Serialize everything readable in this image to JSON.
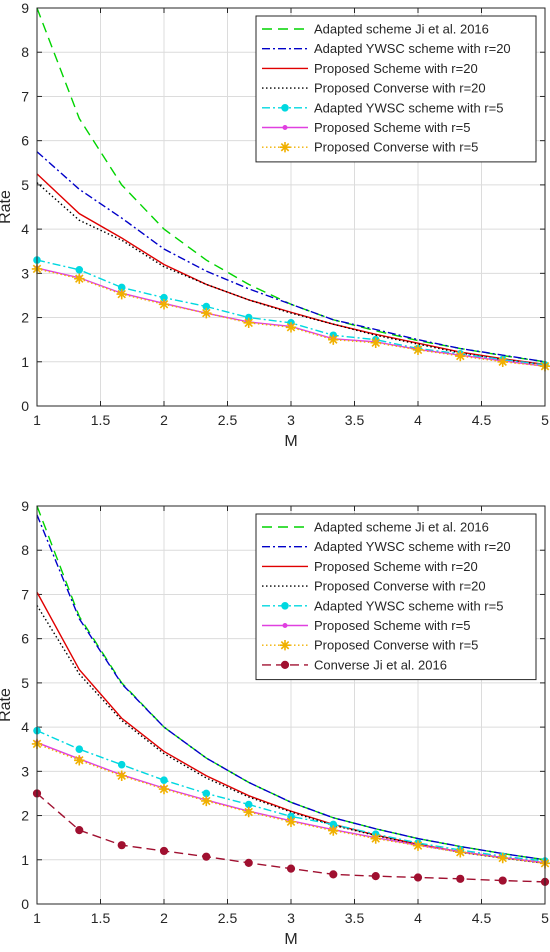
{
  "chart_data": [
    {
      "type": "line",
      "xlabel": "M",
      "ylabel": "Rate",
      "xlim": [
        1,
        5
      ],
      "ylim": [
        0,
        9
      ],
      "xticks": [
        "1",
        "1.5",
        "2",
        "2.5",
        "3",
        "3.5",
        "4",
        "4.5",
        "5"
      ],
      "yticks": [
        "0",
        "1",
        "2",
        "3",
        "4",
        "5",
        "6",
        "7",
        "8",
        "9"
      ],
      "grid": true,
      "legend_position": "top-right",
      "x": [
        1,
        1.333,
        1.667,
        2,
        2.333,
        2.667,
        3,
        3.333,
        3.667,
        4,
        4.333,
        4.667,
        5
      ],
      "series": [
        {
          "name": "Adapted scheme Ji et al. 2016",
          "color": "#00d400",
          "dash": "10,6",
          "marker": "none",
          "values": [
            9.0,
            6.5,
            5.0,
            4.0,
            3.3,
            2.75,
            2.3,
            1.95,
            1.7,
            1.48,
            1.3,
            1.14,
            1.0
          ]
        },
        {
          "name": "Adapted YWSC scheme with r=20",
          "color": "#0000c8",
          "dash": "8,3,2,3",
          "marker": "none",
          "values": [
            5.75,
            4.9,
            4.25,
            3.55,
            3.05,
            2.65,
            2.3,
            1.95,
            1.73,
            1.5,
            1.3,
            1.15,
            1.0
          ]
        },
        {
          "name": "Proposed Scheme with r=20",
          "color": "#e00000",
          "dash": "",
          "marker": "none",
          "values": [
            5.25,
            4.35,
            3.8,
            3.2,
            2.75,
            2.4,
            2.12,
            1.85,
            1.62,
            1.42,
            1.22,
            1.07,
            0.94
          ]
        },
        {
          "name": "Proposed Converse with r=20",
          "color": "#000000",
          "dash": "1.5,2.5",
          "marker": "none",
          "values": [
            5.05,
            4.2,
            3.75,
            3.15,
            2.75,
            2.4,
            2.1,
            1.85,
            1.6,
            1.4,
            1.2,
            1.05,
            0.93
          ]
        },
        {
          "name": "Adapted YWSC scheme with r=5",
          "color": "#00d8e0",
          "dash": "8,3,2,3",
          "marker": "dot",
          "values": [
            3.3,
            3.08,
            2.68,
            2.45,
            2.25,
            2.0,
            1.88,
            1.6,
            1.5,
            1.3,
            1.18,
            1.05,
            0.93
          ]
        },
        {
          "name": "Proposed Scheme with r=5",
          "color": "#e040e0",
          "dash": "",
          "marker": "smalldot",
          "values": [
            3.12,
            2.9,
            2.55,
            2.32,
            2.1,
            1.9,
            1.8,
            1.52,
            1.45,
            1.28,
            1.15,
            1.02,
            0.9
          ]
        },
        {
          "name": "Proposed Converse with r=5",
          "color": "#f0b000",
          "dash": "1.5,2.5",
          "marker": "star",
          "values": [
            3.1,
            2.88,
            2.53,
            2.3,
            2.1,
            1.88,
            1.78,
            1.5,
            1.43,
            1.27,
            1.13,
            1.0,
            0.9
          ]
        }
      ]
    },
    {
      "type": "line",
      "xlabel": "M",
      "ylabel": "Rate",
      "xlim": [
        1,
        5
      ],
      "ylim": [
        0,
        9
      ],
      "xticks": [
        "1",
        "1.5",
        "2",
        "2.5",
        "3",
        "3.5",
        "4",
        "4.5",
        "5"
      ],
      "yticks": [
        "0",
        "1",
        "2",
        "3",
        "4",
        "5",
        "6",
        "7",
        "8",
        "9"
      ],
      "grid": true,
      "legend_position": "top-right",
      "x": [
        1,
        1.333,
        1.667,
        2,
        2.333,
        2.667,
        3,
        3.333,
        3.667,
        4,
        4.333,
        4.667,
        5
      ],
      "series": [
        {
          "name": "Adapted scheme Ji et al. 2016",
          "color": "#00d400",
          "dash": "10,6",
          "marker": "none",
          "values": [
            9.0,
            6.5,
            5.0,
            4.0,
            3.3,
            2.75,
            2.3,
            1.95,
            1.7,
            1.48,
            1.3,
            1.14,
            1.0
          ]
        },
        {
          "name": "Adapted YWSC scheme with r=20",
          "color": "#0000c8",
          "dash": "8,3,2,3",
          "marker": "none",
          "values": [
            8.8,
            6.45,
            4.98,
            4.0,
            3.3,
            2.75,
            2.3,
            1.95,
            1.7,
            1.48,
            1.3,
            1.14,
            1.0
          ]
        },
        {
          "name": "Proposed Scheme with r=20",
          "color": "#e00000",
          "dash": "",
          "marker": "none",
          "values": [
            7.05,
            5.3,
            4.2,
            3.45,
            2.9,
            2.45,
            2.1,
            1.8,
            1.56,
            1.35,
            1.18,
            1.05,
            0.93
          ]
        },
        {
          "name": "Proposed Converse with r=20",
          "color": "#000000",
          "dash": "1.5,2.5",
          "marker": "none",
          "values": [
            6.75,
            5.2,
            4.15,
            3.4,
            2.85,
            2.42,
            2.08,
            1.78,
            1.55,
            1.34,
            1.17,
            1.04,
            0.92
          ]
        },
        {
          "name": "Adapted YWSC scheme with r=5",
          "color": "#00d8e0",
          "dash": "8,3,2,3",
          "marker": "dot",
          "values": [
            3.92,
            3.5,
            3.15,
            2.8,
            2.5,
            2.25,
            1.98,
            1.8,
            1.58,
            1.38,
            1.22,
            1.08,
            0.97
          ]
        },
        {
          "name": "Proposed Scheme with r=5",
          "color": "#e040e0",
          "dash": "",
          "marker": "smalldot",
          "values": [
            3.65,
            3.28,
            2.92,
            2.62,
            2.35,
            2.1,
            1.88,
            1.68,
            1.5,
            1.33,
            1.18,
            1.05,
            0.93
          ]
        },
        {
          "name": "Proposed Converse with r=5",
          "color": "#f0b000",
          "dash": "1.5,2.5",
          "marker": "star",
          "values": [
            3.62,
            3.25,
            2.9,
            2.6,
            2.33,
            2.08,
            1.86,
            1.66,
            1.48,
            1.32,
            1.17,
            1.04,
            0.92
          ]
        },
        {
          "name": "Converse Ji et al. 2016",
          "color": "#a01030",
          "dash": "9,5",
          "marker": "bigdot",
          "values": [
            2.5,
            1.67,
            1.33,
            1.2,
            1.07,
            0.93,
            0.8,
            0.67,
            0.63,
            0.6,
            0.57,
            0.53,
            0.5
          ]
        }
      ]
    }
  ]
}
